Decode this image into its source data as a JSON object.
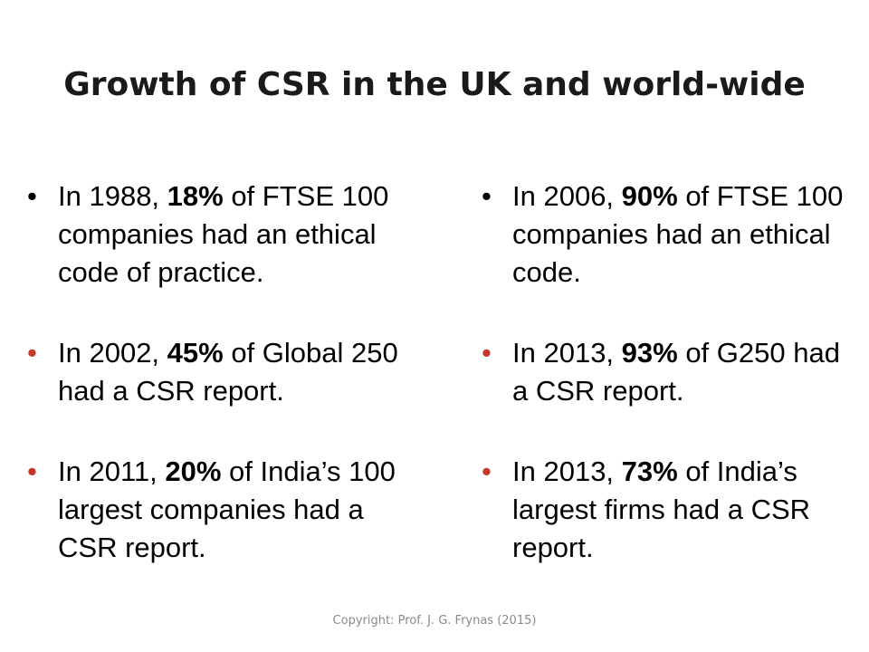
{
  "title": "Growth of CSR in the UK and world-wide",
  "colors": {
    "title": "#1a1a1a",
    "bullet_first": "#000000",
    "bullet_other": "#c0392b",
    "footer": "#8a8a8a"
  },
  "left": [
    {
      "prefix": "In 1988, ",
      "highlight": "18%",
      "suffix": " of FTSE 100 companies had an ethical code of practice."
    },
    {
      "prefix": "In 2002, ",
      "highlight": "45%",
      "suffix": " of Global 250 had a CSR report."
    },
    {
      "prefix": "In 2011, ",
      "highlight": "20%",
      "suffix": " of India’s 100 largest companies had a CSR report."
    }
  ],
  "right": [
    {
      "prefix": "In 2006, ",
      "highlight": "90%",
      "suffix": " of FTSE 100 companies had an ethical code."
    },
    {
      "prefix": "In 2013, ",
      "highlight": "93%",
      "suffix": " of G250 had a CSR report."
    },
    {
      "prefix": "In 2013, ",
      "highlight": "73%",
      "suffix": " of India’s largest firms had a CSR report."
    }
  ],
  "footer": "Copyright: Prof. J. G. Frynas (2015)"
}
